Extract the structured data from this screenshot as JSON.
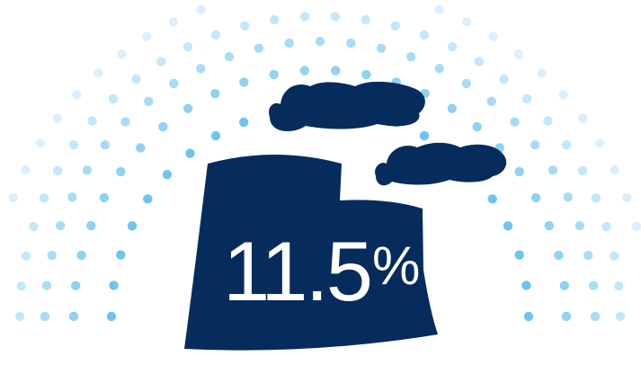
{
  "stat": {
    "value": "11.5",
    "unit": "%"
  },
  "colors": {
    "factory": "#052c5c",
    "dots": [
      "#dcefff",
      "#c3e7fb",
      "#a8dcf6",
      "#8fd2f3",
      "#6cc5ee"
    ],
    "text": "#ffffff",
    "background": "#ffffff"
  },
  "icons": [
    "factory-icon",
    "smoke-cloud-icon",
    "dot-arc-pattern"
  ]
}
